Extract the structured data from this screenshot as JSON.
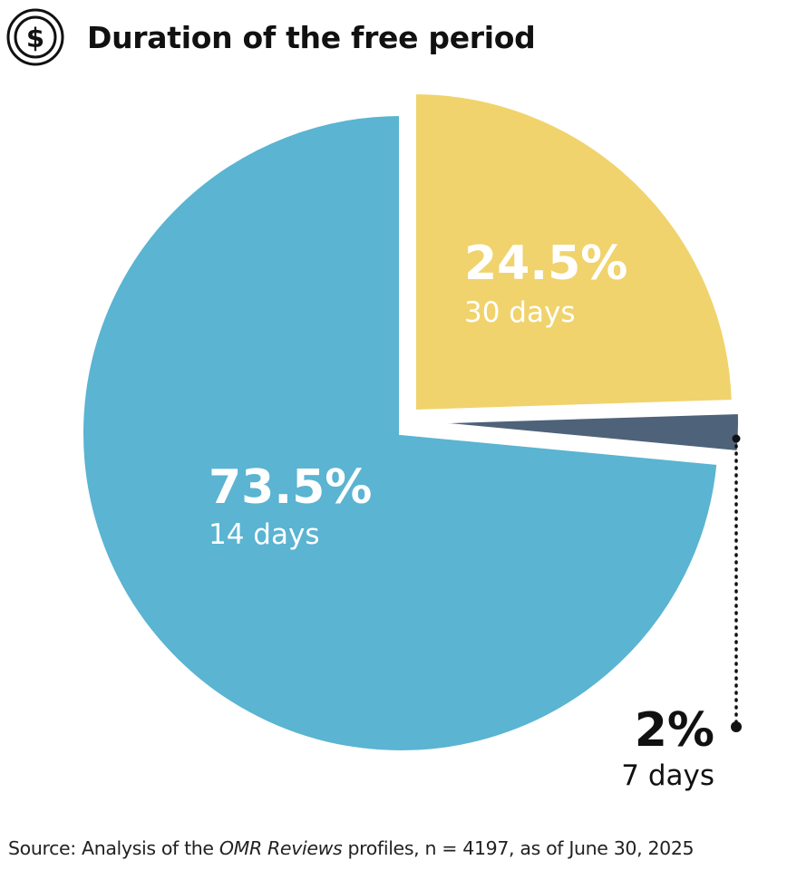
{
  "header": {
    "title": "Duration of the free period",
    "icon": "dollar-circle-icon"
  },
  "chart_data": {
    "type": "pie",
    "slices": [
      {
        "value": 73.5,
        "percent_label": "73.5%",
        "category": "14 days",
        "color": "#5AB4D2"
      },
      {
        "value": 24.5,
        "percent_label": "24.5%",
        "category": "30 days",
        "color": "#F0D36C"
      },
      {
        "value": 2,
        "percent_label": "2%",
        "category": "7 days",
        "color": "#4E6279"
      }
    ],
    "legend": "none",
    "source": {
      "prefix": "Source: Analysis of the",
      "italic": "OMR Reviews",
      "suffix": "profiles, n = 4197, as of June 30, 2025"
    }
  }
}
